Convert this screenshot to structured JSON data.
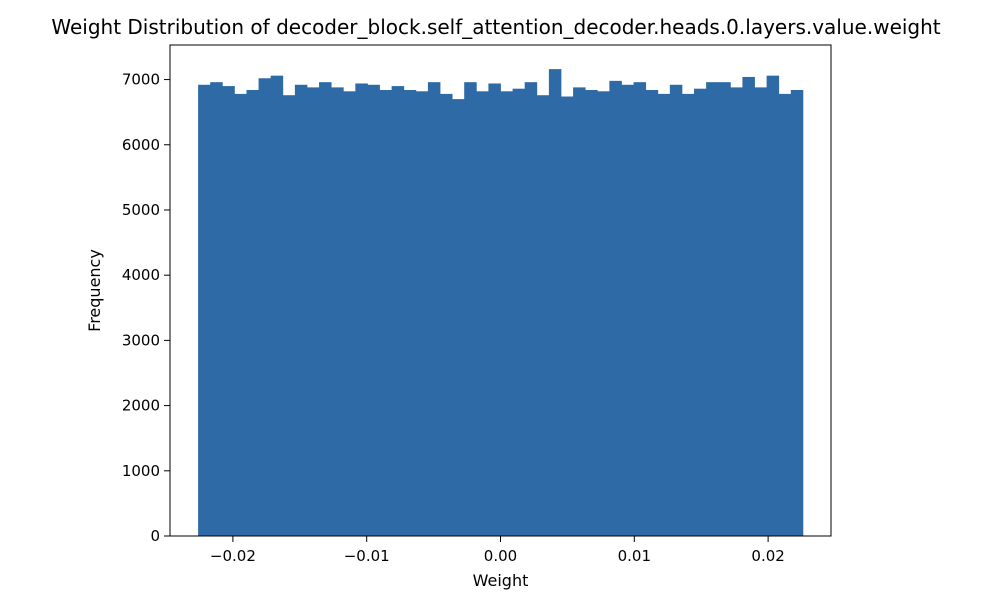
{
  "chart_data": {
    "type": "bar",
    "title": "Weight Distribution of decoder_block.self_attention_decoder.heads.0.layers.value.weight",
    "xlabel": "Weight",
    "ylabel": "Frequency",
    "xlim": [
      -0.0247,
      0.0247
    ],
    "ylim": [
      0,
      7530
    ],
    "bin_range": [
      -0.0226,
      0.0226
    ],
    "xticks": [
      -0.02,
      -0.01,
      0.0,
      0.01,
      0.02
    ],
    "xtick_labels": [
      "−0.02",
      "−0.01",
      "0.00",
      "0.01",
      "0.02"
    ],
    "yticks": [
      0,
      1000,
      2000,
      3000,
      4000,
      5000,
      6000,
      7000
    ],
    "ytick_labels": [
      "0",
      "1000",
      "2000",
      "3000",
      "4000",
      "5000",
      "6000",
      "7000"
    ],
    "bar_color": "#2e6aa6",
    "grid": false,
    "legend": "none",
    "values": [
      6920,
      6960,
      6900,
      6780,
      6840,
      7020,
      7060,
      6760,
      6920,
      6880,
      6960,
      6880,
      6820,
      6940,
      6920,
      6840,
      6900,
      6840,
      6820,
      6960,
      6780,
      6700,
      6960,
      6820,
      6940,
      6820,
      6860,
      6960,
      6760,
      7160,
      6740,
      6880,
      6840,
      6820,
      6980,
      6920,
      6960,
      6840,
      6780,
      6920,
      6780,
      6860,
      6960,
      6960,
      6880,
      7040,
      6880,
      7060,
      6780,
      6840
    ]
  }
}
